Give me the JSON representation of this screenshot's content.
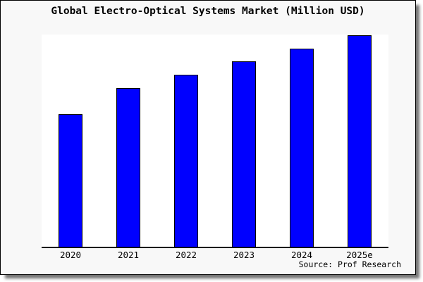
{
  "frame": {
    "background": "#f8f8f8",
    "border_color": "#000000",
    "plot_background": "#ffffff",
    "shadow_color": "#888888"
  },
  "chart_data": {
    "type": "bar",
    "title": "Global Electro-Optical Systems Market (Million USD)",
    "categories": [
      "2020",
      "2021",
      "2022",
      "2023",
      "2024",
      "2025e"
    ],
    "values": [
      62.5,
      74.8,
      81.1,
      87.4,
      93.4,
      99.7
    ],
    "values_note": "relative bar heights as % of plot-area max; chart shows no y-axis tick labels or gridlines",
    "ylim": [
      0,
      100
    ],
    "xlabel": "",
    "ylabel": "",
    "grid": false,
    "legend": false,
    "bar_color": "#0000ff",
    "bar_border_color": "#000000",
    "source": "Source: Prof Research"
  }
}
